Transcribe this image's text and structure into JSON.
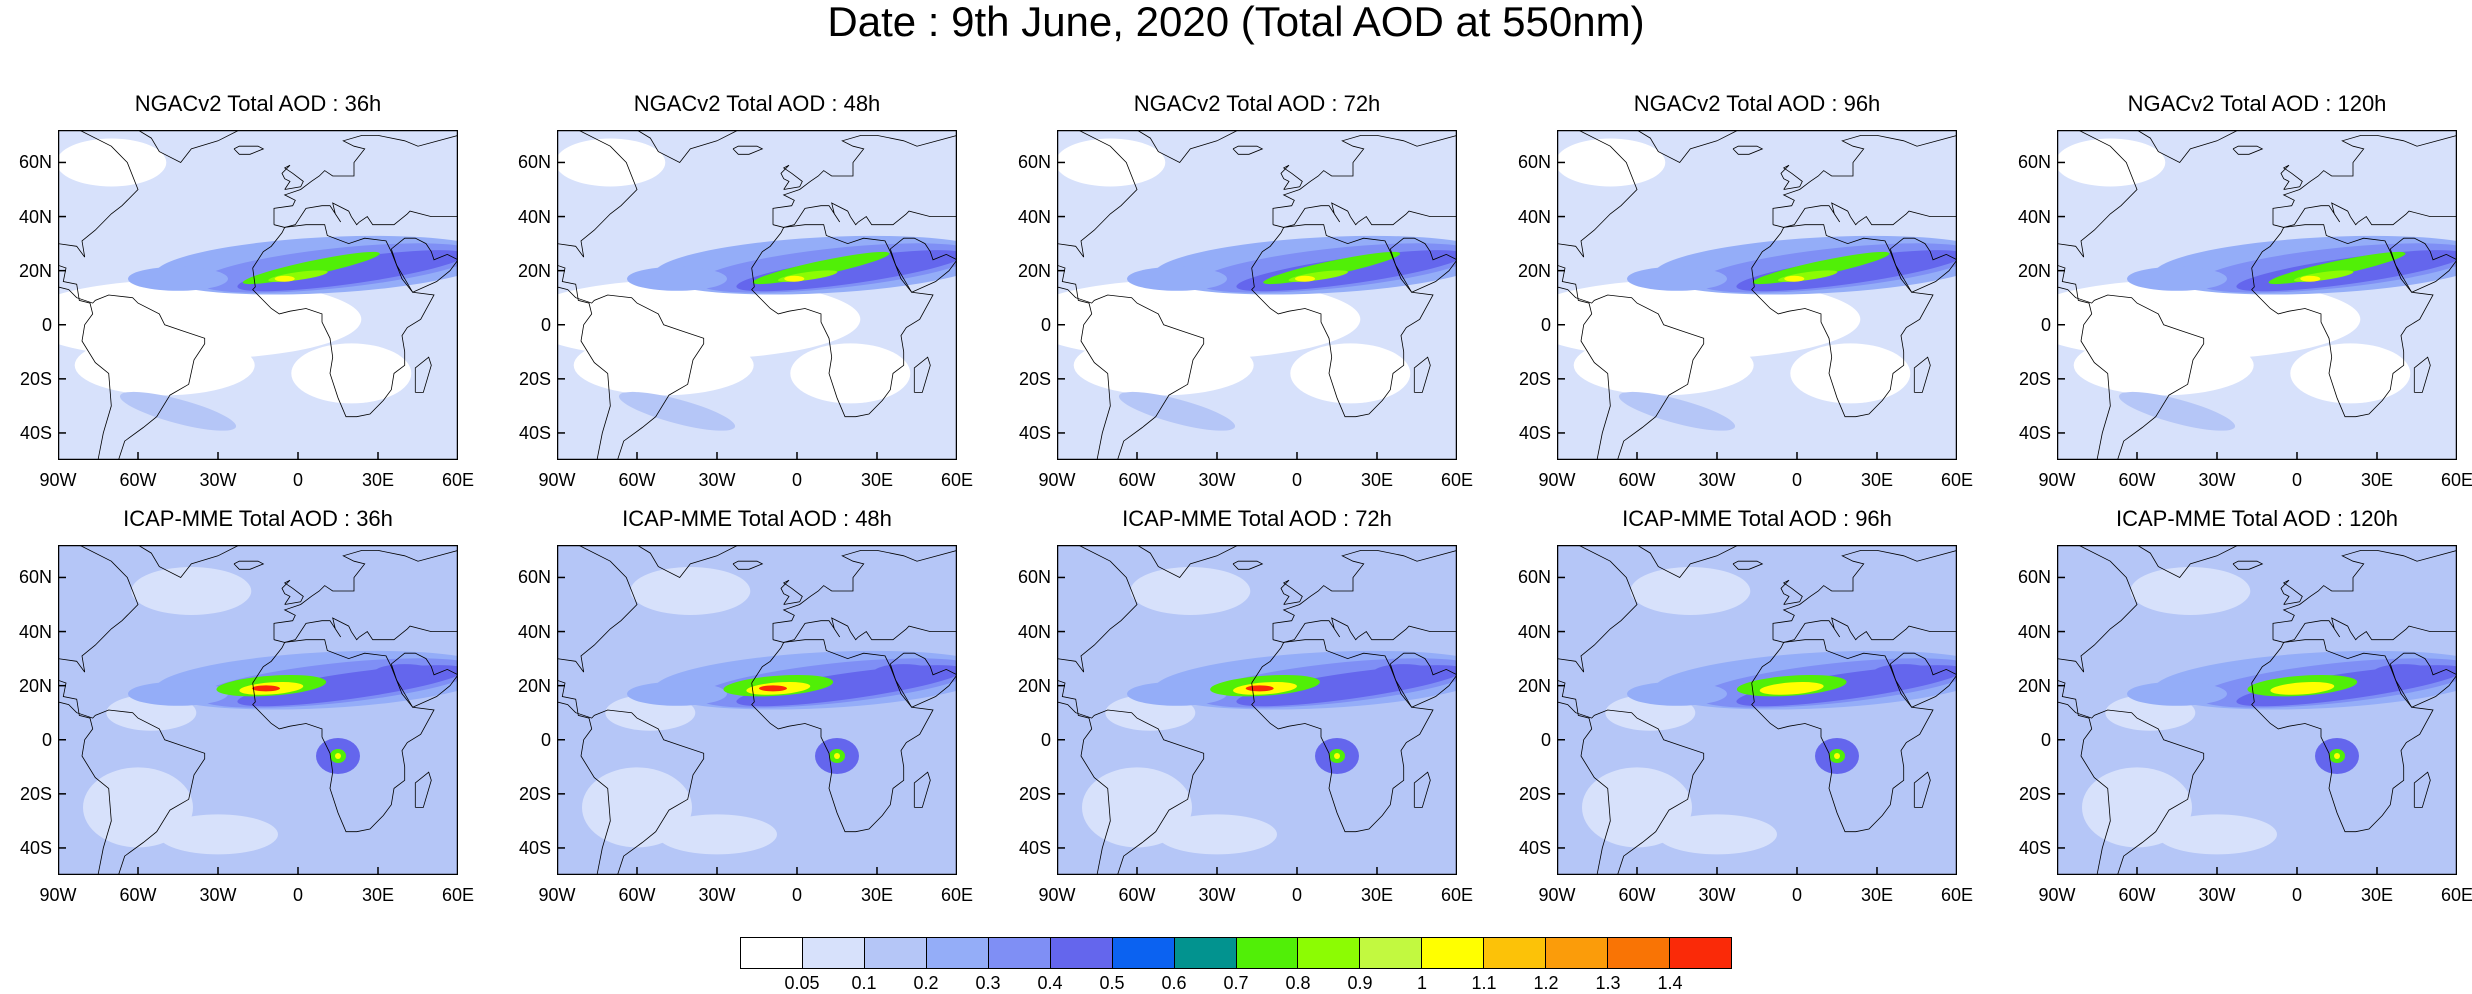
{
  "title": "Date : 9th June, 2020 (Total AOD at 550nm)",
  "panels": [
    {
      "title": "NGACv2 Total AOD : 36h",
      "model": "NGACv2",
      "lead": "36h"
    },
    {
      "title": "NGACv2 Total AOD : 48h",
      "model": "NGACv2",
      "lead": "48h"
    },
    {
      "title": "NGACv2 Total AOD : 72h",
      "model": "NGACv2",
      "lead": "72h"
    },
    {
      "title": "NGACv2 Total AOD : 96h",
      "model": "NGACv2",
      "lead": "96h"
    },
    {
      "title": "NGACv2 Total AOD : 120h",
      "model": "NGACv2",
      "lead": "120h"
    },
    {
      "title": "ICAP-MME Total AOD : 36h",
      "model": "ICAP-MME",
      "lead": "36h"
    },
    {
      "title": "ICAP-MME Total AOD : 48h",
      "model": "ICAP-MME",
      "lead": "48h"
    },
    {
      "title": "ICAP-MME Total AOD : 72h",
      "model": "ICAP-MME",
      "lead": "72h"
    },
    {
      "title": "ICAP-MME Total AOD : 96h",
      "model": "ICAP-MME",
      "lead": "96h"
    },
    {
      "title": "ICAP-MME Total AOD : 120h",
      "model": "ICAP-MME",
      "lead": "120h"
    }
  ],
  "axes": {
    "lon_labels": [
      "90W",
      "60W",
      "30W",
      "0",
      "30E",
      "60E"
    ],
    "lat_labels": [
      "60N",
      "40N",
      "20N",
      "0",
      "20S",
      "40S"
    ]
  },
  "colorbar": {
    "colors": [
      "#ffffff",
      "#d7e1fb",
      "#b5c6f7",
      "#94adf8",
      "#7f8ff5",
      "#6466ed",
      "#0b62f1",
      "#02938f",
      "#51ef07",
      "#8cfc03",
      "#c2f940",
      "#ffff00",
      "#fcc208",
      "#fb9c0a",
      "#f97405",
      "#fa2a08"
    ],
    "labels": [
      "0.05",
      "0.1",
      "0.2",
      "0.3",
      "0.4",
      "0.5",
      "0.6",
      "0.7",
      "0.8",
      "0.9",
      "1",
      "1.1",
      "1.2",
      "1.3",
      "1.4"
    ]
  }
}
